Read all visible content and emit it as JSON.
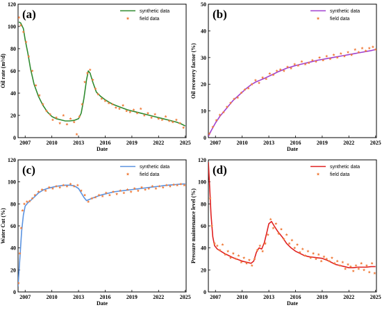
{
  "colors": {
    "field": "#f07d3c",
    "axis": "#000000"
  },
  "chart_data": [
    {
      "type": "line",
      "panel_label": "(a)",
      "xlabel": "Date",
      "ylabel": "Oil rate (m³/d)",
      "xlim": [
        2006.2,
        2025.1
      ],
      "ylim": [
        0,
        120
      ],
      "xticks": [
        2007,
        2010,
        2013,
        2016,
        2019,
        2022,
        2025
      ],
      "yticks": [
        0,
        20,
        40,
        60,
        80,
        100,
        120
      ],
      "legend_position": "top-right",
      "series": [
        {
          "name": "synthetic data",
          "kind": "line",
          "color": "#2f8a2f",
          "x": [
            2006.3,
            2006.5,
            2006.8,
            2007.0,
            2007.3,
            2007.6,
            2008.0,
            2008.5,
            2009.0,
            2009.5,
            2010.0,
            2010.5,
            2011.0,
            2011.5,
            2012.0,
            2012.5,
            2013.0,
            2013.3,
            2013.6,
            2013.9,
            2014.1,
            2014.3,
            2014.6,
            2015.0,
            2015.5,
            2016.0,
            2016.5,
            2017.0,
            2017.5,
            2018.0,
            2018.5,
            2019.0,
            2019.5,
            2020.0,
            2020.5,
            2021.0,
            2021.5,
            2022.0,
            2022.5,
            2023.0,
            2023.5,
            2024.0,
            2024.5,
            2025.0
          ],
          "y": [
            104,
            103,
            98,
            88,
            76,
            62,
            48,
            37,
            29,
            23,
            19,
            17,
            16,
            15,
            15,
            15.5,
            17,
            22,
            35,
            52,
            60,
            58,
            50,
            41,
            37,
            34,
            31.5,
            29.5,
            28,
            26.5,
            25,
            24,
            23,
            22,
            21,
            20,
            19,
            18,
            17,
            16,
            15,
            14,
            12.5,
            10.5
          ]
        },
        {
          "name": "field data",
          "kind": "scatter",
          "x": [
            2006.3,
            2006.5,
            2006.8,
            2007.1,
            2007.4,
            2007.8,
            2008.2,
            2008.6,
            2009.0,
            2009.4,
            2009.8,
            2010.1,
            2010.5,
            2010.9,
            2011.3,
            2011.7,
            2012.1,
            2012.5,
            2012.8,
            2013.1,
            2013.4,
            2013.7,
            2014.0,
            2014.3,
            2014.6,
            2014.9,
            2015.2,
            2015.6,
            2016.0,
            2016.4,
            2016.8,
            2017.2,
            2017.6,
            2018.0,
            2018.4,
            2018.8,
            2019.2,
            2019.6,
            2020.0,
            2020.4,
            2020.8,
            2021.2,
            2021.6,
            2022.0,
            2022.4,
            2022.8,
            2023.2,
            2023.6,
            2024.0,
            2024.4,
            2024.8
          ],
          "y": [
            108,
            101,
            95,
            86,
            73,
            60,
            47,
            38,
            30,
            24,
            21,
            16,
            18,
            13,
            20,
            12,
            17,
            14,
            3,
            19,
            30,
            50,
            58,
            61,
            52,
            44,
            39,
            35,
            33,
            31,
            30,
            27,
            26,
            29,
            24,
            23,
            25,
            22,
            26,
            20,
            22,
            18,
            21,
            17,
            16,
            19,
            15,
            14,
            16,
            13,
            9
          ]
        }
      ]
    },
    {
      "type": "line",
      "panel_label": "(b)",
      "xlabel": "Date",
      "ylabel": "Oil recovery factor (%)",
      "xlim": [
        2006.2,
        2025.1
      ],
      "ylim": [
        0,
        50
      ],
      "xticks": [
        2007,
        2010,
        2013,
        2016,
        2019,
        2022,
        2025
      ],
      "yticks": [
        0,
        10,
        20,
        30,
        40,
        50
      ],
      "legend_position": "top-right",
      "series": [
        {
          "name": "synthetic data",
          "kind": "line",
          "color": "#a040d0",
          "x": [
            2006.2,
            2006.5,
            2007.0,
            2007.5,
            2008.0,
            2008.5,
            2009.0,
            2009.5,
            2010.0,
            2010.5,
            2011.0,
            2011.5,
            2012.0,
            2012.5,
            2013.0,
            2013.5,
            2014.0,
            2014.5,
            2015.0,
            2015.5,
            2016.0,
            2016.5,
            2017.0,
            2017.5,
            2018.0,
            2018.5,
            2019.0,
            2019.5,
            2020.0,
            2020.5,
            2021.0,
            2021.5,
            2022.0,
            2022.5,
            2023.0,
            2023.5,
            2024.0,
            2024.5,
            2025.0
          ],
          "y": [
            0.5,
            2.5,
            5.5,
            8,
            10,
            12,
            14,
            15.5,
            17,
            18.5,
            19.8,
            20.8,
            21.5,
            22.2,
            23,
            23.8,
            24.6,
            25.3,
            26,
            26.5,
            27,
            27.4,
            27.8,
            28.2,
            28.6,
            29,
            29.3,
            29.6,
            29.9,
            30.2,
            30.5,
            30.8,
            31.1,
            31.4,
            31.7,
            32,
            32.3,
            32.6,
            33
          ]
        },
        {
          "name": "field data",
          "kind": "scatter",
          "x": [
            2006.3,
            2006.7,
            2007.1,
            2007.5,
            2007.9,
            2008.3,
            2008.7,
            2009.1,
            2009.5,
            2009.9,
            2010.3,
            2010.7,
            2011.1,
            2011.5,
            2011.9,
            2012.3,
            2012.7,
            2013.1,
            2013.5,
            2013.9,
            2014.3,
            2014.7,
            2015.1,
            2015.5,
            2015.9,
            2016.3,
            2016.7,
            2017.1,
            2017.5,
            2017.9,
            2018.3,
            2018.7,
            2019.1,
            2019.5,
            2019.9,
            2020.3,
            2020.7,
            2021.1,
            2021.5,
            2021.9,
            2022.3,
            2022.7,
            2023.1,
            2023.5,
            2023.9,
            2024.3,
            2024.7,
            2025.0
          ],
          "y": [
            1.5,
            4,
            6.5,
            8.5,
            9.5,
            11.5,
            13,
            14.5,
            15,
            16.8,
            18,
            18.5,
            20,
            21.5,
            20.5,
            22.5,
            22,
            24,
            23.5,
            25,
            25.5,
            25,
            26.5,
            26,
            27.5,
            27,
            28.5,
            27.5,
            28,
            29,
            28.5,
            30,
            29,
            30.5,
            29.5,
            31,
            30,
            31.5,
            30.5,
            32,
            31,
            33,
            32,
            33.5,
            32.5,
            33.5,
            34,
            33
          ]
        }
      ]
    },
    {
      "type": "line",
      "panel_label": "(c)",
      "xlabel": "Date",
      "ylabel": "Water Cut (%)",
      "xlim": [
        2006.2,
        2025.1
      ],
      "ylim": [
        0,
        120
      ],
      "xticks": [
        2007,
        2010,
        2013,
        2016,
        2019,
        2022,
        2025
      ],
      "yticks": [
        0,
        20,
        40,
        60,
        80,
        100,
        120
      ],
      "legend_position": "top-right",
      "series": [
        {
          "name": "synthetic data",
          "kind": "line",
          "color": "#5b93e0",
          "x": [
            2006.2,
            2006.4,
            2006.6,
            2006.8,
            2007.0,
            2007.3,
            2007.6,
            2008.0,
            2008.5,
            2009.0,
            2009.5,
            2010.0,
            2010.5,
            2011.0,
            2011.5,
            2012.0,
            2012.5,
            2013.0,
            2013.3,
            2013.6,
            2013.9,
            2014.2,
            2014.5,
            2015.0,
            2015.5,
            2016.0,
            2016.5,
            2017.0,
            2017.5,
            2018.0,
            2018.5,
            2019.0,
            2019.5,
            2020.0,
            2020.5,
            2021.0,
            2021.5,
            2022.0,
            2022.5,
            2023.0,
            2023.5,
            2024.0,
            2024.5,
            2025.0
          ],
          "y": [
            5,
            30,
            55,
            70,
            78,
            81,
            83,
            86,
            90,
            92.5,
            94,
            95,
            96,
            96.5,
            97,
            97,
            96.5,
            94,
            90,
            86,
            83,
            84,
            85,
            86.5,
            88,
            89,
            90,
            91,
            91.5,
            92,
            92.5,
            93,
            93.5,
            94,
            94.5,
            95,
            95.5,
            96,
            96.5,
            97,
            97.3,
            97.6,
            98,
            98.2
          ]
        },
        {
          "name": "field data",
          "kind": "scatter",
          "x": [
            2006.25,
            2006.4,
            2006.55,
            2006.7,
            2006.9,
            2007.2,
            2007.5,
            2007.8,
            2008.1,
            2008.5,
            2008.9,
            2009.3,
            2009.7,
            2010.1,
            2010.5,
            2010.9,
            2011.3,
            2011.7,
            2012.1,
            2012.5,
            2012.9,
            2013.3,
            2013.7,
            2014.1,
            2014.5,
            2014.9,
            2015.3,
            2015.7,
            2016.1,
            2016.5,
            2016.9,
            2017.3,
            2017.7,
            2018.1,
            2018.5,
            2018.9,
            2019.3,
            2019.7,
            2020.1,
            2020.5,
            2020.9,
            2021.3,
            2021.7,
            2022.1,
            2022.5,
            2022.9,
            2023.3,
            2023.7,
            2024.1,
            2024.5,
            2024.9
          ],
          "y": [
            8,
            35,
            58,
            74,
            80,
            82,
            82.5,
            85,
            88,
            91,
            93,
            92,
            95,
            94,
            96,
            95,
            97,
            96,
            98,
            96,
            97,
            92,
            88,
            82,
            85,
            86,
            88,
            87,
            90,
            88,
            91,
            89,
            92,
            90,
            93,
            91,
            94,
            92,
            95,
            93,
            94,
            96,
            94,
            96,
            95,
            97,
            96,
            97.5,
            97,
            98,
            97
          ]
        }
      ]
    },
    {
      "type": "line",
      "panel_label": "(d)",
      "xlabel": "Date",
      "ylabel": "Pressure maintenance level (%)",
      "xlim": [
        2006.2,
        2025.1
      ],
      "ylim": [
        0,
        120
      ],
      "xticks": [
        2007,
        2010,
        2013,
        2016,
        2019,
        2022,
        2025
      ],
      "yticks": [
        0,
        20,
        40,
        60,
        80,
        100,
        120
      ],
      "legend_position": "top-right",
      "series": [
        {
          "name": "synthetic data",
          "kind": "line",
          "color": "#e02020",
          "x": [
            2006.2,
            2006.35,
            2006.5,
            2006.7,
            2006.9,
            2007.2,
            2007.6,
            2008.0,
            2008.5,
            2009.0,
            2009.5,
            2010.0,
            2010.5,
            2011.0,
            2011.3,
            2011.6,
            2011.9,
            2012.2,
            2012.5,
            2012.8,
            2013.0,
            2013.3,
            2013.6,
            2014.0,
            2014.5,
            2015.0,
            2015.5,
            2016.0,
            2016.5,
            2017.0,
            2017.5,
            2018.0,
            2018.5,
            2019.0,
            2019.5,
            2020.0,
            2020.5,
            2021.0,
            2021.5,
            2022.0,
            2022.5,
            2023.0,
            2023.5,
            2024.0,
            2024.5,
            2025.0
          ],
          "y": [
            118,
            95,
            70,
            50,
            42,
            39,
            37,
            35,
            33,
            31,
            29.5,
            28,
            27,
            26,
            28,
            36,
            40,
            39,
            45,
            55,
            62,
            64,
            60,
            55,
            50,
            44,
            40,
            37,
            35,
            33,
            32,
            31.5,
            31,
            30.5,
            29,
            27,
            25,
            24,
            23,
            22,
            22,
            22.5,
            22.5,
            22.5,
            23,
            23
          ]
        },
        {
          "name": "field data",
          "kind": "scatter",
          "x": [
            2006.4,
            2006.6,
            2006.9,
            2007.2,
            2007.5,
            2007.8,
            2008.1,
            2008.4,
            2008.7,
            2009.0,
            2009.3,
            2009.6,
            2009.9,
            2010.2,
            2010.5,
            2010.8,
            2011.1,
            2011.4,
            2011.7,
            2012.0,
            2012.3,
            2012.6,
            2012.9,
            2013.2,
            2013.5,
            2013.8,
            2014.1,
            2014.4,
            2014.7,
            2015.0,
            2015.3,
            2015.6,
            2015.9,
            2016.2,
            2016.5,
            2016.8,
            2017.1,
            2017.4,
            2017.7,
            2018.0,
            2018.3,
            2018.6,
            2018.9,
            2019.2,
            2019.5,
            2019.8,
            2020.1,
            2020.4,
            2020.7,
            2021.0,
            2021.3,
            2021.6,
            2021.9,
            2022.2,
            2022.5,
            2022.8,
            2023.1,
            2023.4,
            2023.7,
            2024.0,
            2024.3,
            2024.6,
            2024.9
          ],
          "y": [
            85,
            60,
            44,
            42,
            38,
            43,
            34,
            37,
            31,
            35,
            30,
            33,
            27,
            31,
            26,
            29,
            24,
            30,
            38,
            42,
            37,
            44,
            52,
            66,
            58,
            62,
            53,
            57,
            48,
            52,
            44,
            47,
            40,
            43,
            36,
            39,
            33,
            37,
            31,
            35,
            30,
            34,
            28,
            32,
            30,
            28,
            31,
            26,
            28,
            24,
            27,
            21,
            25,
            23,
            19,
            24,
            21,
            26,
            20,
            24,
            18,
            26,
            17
          ]
        }
      ]
    }
  ]
}
